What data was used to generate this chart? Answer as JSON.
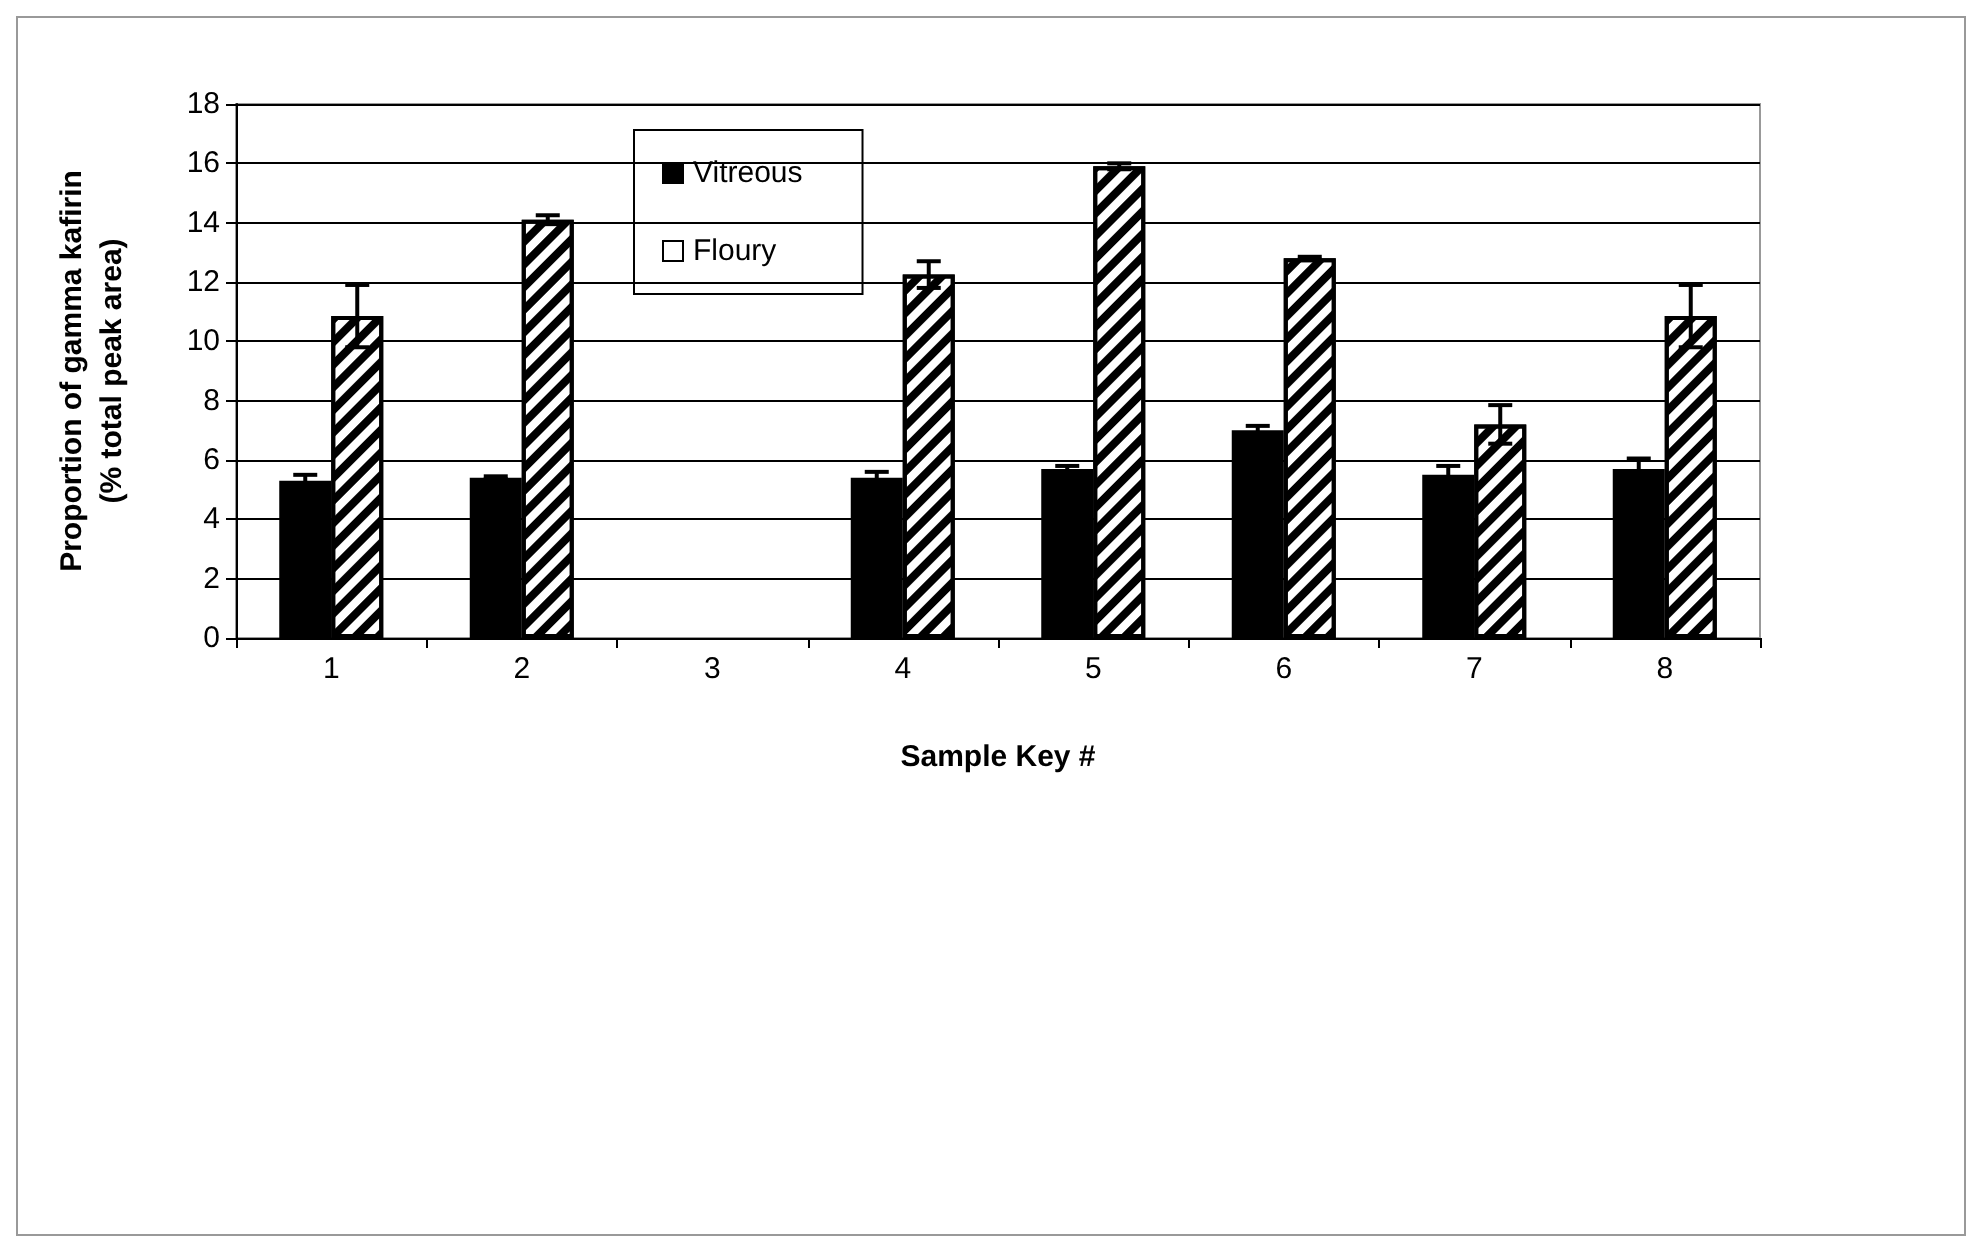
{
  "chart_data": {
    "type": "bar",
    "xlabel": "Sample Key #",
    "ylabel": "Proportion of gamma kafirin\n(% total peak area)",
    "categories": [
      "1",
      "2",
      "3",
      "4",
      "5",
      "6",
      "7",
      "8"
    ],
    "series": [
      {
        "name": "Vitreous",
        "color": "#000000",
        "values": [
          5.3,
          5.4,
          null,
          5.4,
          5.7,
          7.0,
          5.5,
          5.7
        ],
        "errors": [
          0.2,
          0.05,
          null,
          0.2,
          0.1,
          0.15,
          0.3,
          0.35
        ]
      },
      {
        "name": "Floury",
        "color": "#ffffff",
        "values": [
          10.85,
          14.1,
          null,
          12.25,
          15.9,
          12.8,
          7.2,
          10.85
        ],
        "errors": [
          1.05,
          0.15,
          null,
          0.45,
          0.1,
          0.05,
          0.65,
          1.05
        ]
      }
    ],
    "ylim": [
      0,
      18
    ],
    "yticks": [
      0,
      2,
      4,
      6,
      8,
      10,
      12,
      14,
      16,
      18
    ],
    "grid": "y",
    "legend": "top"
  }
}
